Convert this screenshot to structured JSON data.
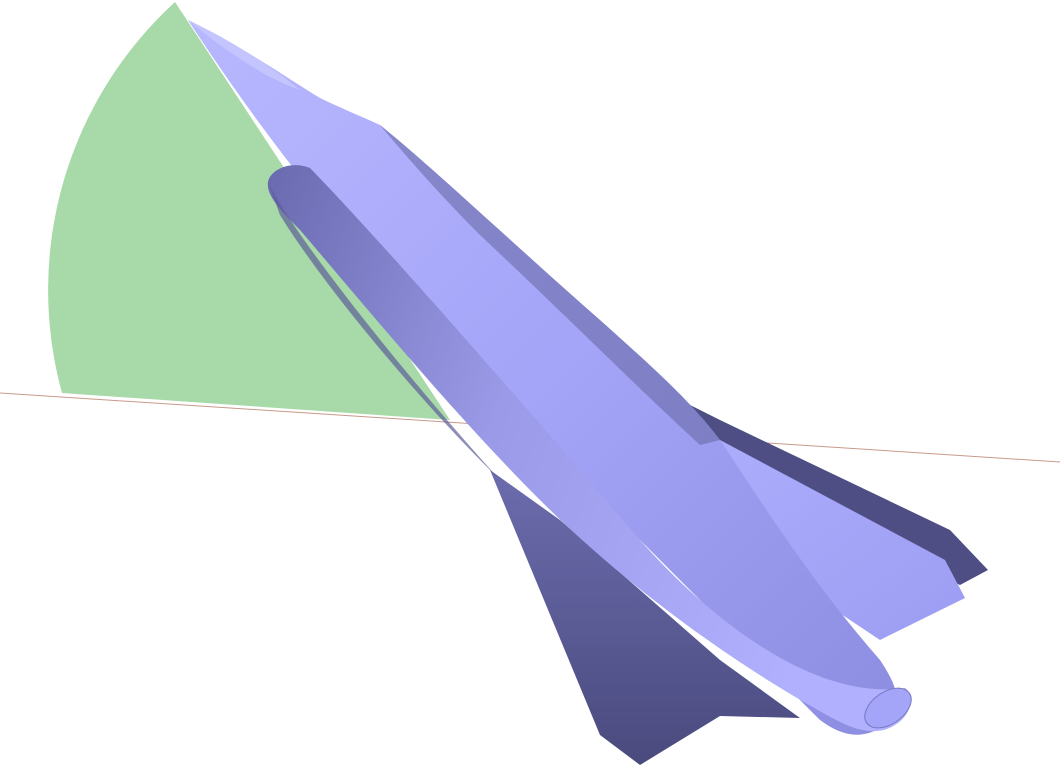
{
  "scene": {
    "background_color": "#ffffff",
    "angle_sector_color": "#a8d9a8",
    "horizon_line_color": "#c89a8a",
    "aircraft_light_color": "#a8a8ff",
    "aircraft_mid_color": "#8c8ce0",
    "aircraft_dark_color": "#5a5a90",
    "aircraft_shadow_color": "#40406e"
  }
}
